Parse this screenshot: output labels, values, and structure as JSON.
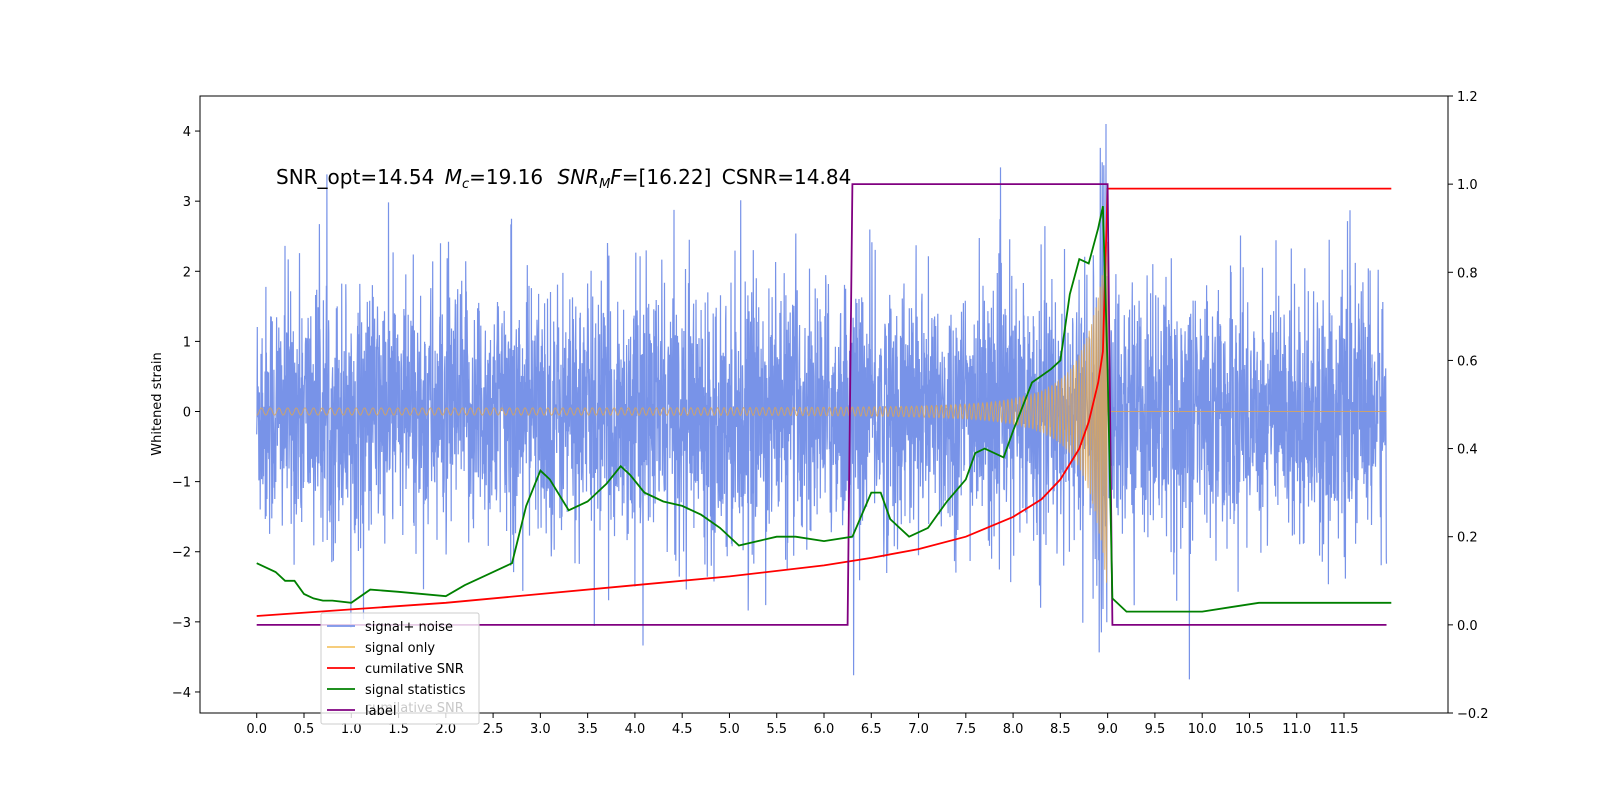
{
  "chart_data": {
    "type": "line",
    "title": "",
    "xlabel": "",
    "ylabel": "Whitened strain",
    "xlim": [
      -0.6,
      12.6
    ],
    "ylim": [
      -4.3,
      4.5
    ],
    "ylim_right": [
      -0.2,
      1.2
    ],
    "grid": false,
    "legend_position": "lower-left",
    "x_ticks": [
      "0.0",
      "0.5",
      "1.0",
      "1.5",
      "2.0",
      "2.5",
      "3.0",
      "3.5",
      "4.0",
      "4.5",
      "5.0",
      "5.5",
      "6.0",
      "6.5",
      "7.0",
      "7.5",
      "8.0",
      "8.5",
      "9.0",
      "9.5",
      "10.0",
      "10.5",
      "11.0",
      "11.5"
    ],
    "y_ticks_left": [
      "4",
      "3",
      "2",
      "1",
      "0",
      "−1",
      "−2",
      "−3",
      "−4"
    ],
    "y_ticks_right": [
      "1.2",
      "1.0",
      "0.8",
      "0.6",
      "0.4",
      "0.2",
      "0.0",
      "−0.2"
    ],
    "annotation": {
      "snr_opt": "SNR_opt=14.54",
      "mc_sym": "M",
      "mc_sub": "c",
      "mc_val": "=19.16",
      "snr_mf_sym": "SNR",
      "snr_mf_sub": "M",
      "snr_mf_f": "F",
      "snr_mf_val": "=[16.22]",
      "csnr": "CSNR=14.84"
    },
    "legend": [
      {
        "label": "signal+ noise",
        "color": "#7893e8"
      },
      {
        "label": "signal only",
        "color": "#f5c66a"
      },
      {
        "label": "cumilative SNR",
        "color": "#ff0000"
      },
      {
        "label": "signal statistics",
        "color": "#008000"
      },
      {
        "label": "label",
        "color": "#800080"
      }
    ],
    "legend_ghost_text": "cumilative SNR",
    "series": [
      {
        "name": "cumilative SNR",
        "axis": "right",
        "color": "#ff0000",
        "x": [
          0.0,
          1.0,
          2.0,
          3.0,
          4.0,
          5.0,
          6.0,
          6.5,
          7.0,
          7.5,
          8.0,
          8.3,
          8.5,
          8.7,
          8.8,
          8.9,
          8.95,
          9.0,
          12.0
        ],
        "y": [
          0.02,
          0.035,
          0.05,
          0.07,
          0.09,
          0.11,
          0.135,
          0.152,
          0.172,
          0.2,
          0.245,
          0.285,
          0.33,
          0.4,
          0.46,
          0.55,
          0.62,
          0.99,
          0.99
        ]
      },
      {
        "name": "label",
        "axis": "right",
        "color": "#800080",
        "x": [
          0.0,
          6.25,
          6.3,
          9.0,
          9.05,
          11.95
        ],
        "y": [
          0.0,
          0.0,
          1.0,
          1.0,
          0.0,
          0.0
        ]
      },
      {
        "name": "signal statistics",
        "axis": "right",
        "color": "#008000",
        "x": [
          0.0,
          0.2,
          0.3,
          0.4,
          0.5,
          0.6,
          0.7,
          0.8,
          1.0,
          1.2,
          1.5,
          2.0,
          2.2,
          2.4,
          2.7,
          2.85,
          3.0,
          3.1,
          3.3,
          3.5,
          3.7,
          3.85,
          3.95,
          4.1,
          4.3,
          4.5,
          4.7,
          4.9,
          5.1,
          5.3,
          5.5,
          5.7,
          6.0,
          6.3,
          6.5,
          6.6,
          6.7,
          6.9,
          7.1,
          7.3,
          7.5,
          7.6,
          7.7,
          7.9,
          8.0,
          8.2,
          8.4,
          8.5,
          8.6,
          8.7,
          8.8,
          8.9,
          8.95,
          9.0,
          9.05,
          9.2,
          9.5,
          10.0,
          10.3,
          10.6,
          11.0,
          11.5,
          12.0
        ],
        "y": [
          0.14,
          0.12,
          0.1,
          0.1,
          0.07,
          0.06,
          0.055,
          0.055,
          0.05,
          0.08,
          0.075,
          0.065,
          0.09,
          0.11,
          0.14,
          0.27,
          0.35,
          0.33,
          0.26,
          0.28,
          0.32,
          0.36,
          0.34,
          0.3,
          0.28,
          0.27,
          0.25,
          0.22,
          0.18,
          0.19,
          0.2,
          0.2,
          0.19,
          0.2,
          0.3,
          0.3,
          0.24,
          0.2,
          0.22,
          0.28,
          0.33,
          0.39,
          0.4,
          0.38,
          0.44,
          0.55,
          0.58,
          0.6,
          0.75,
          0.83,
          0.82,
          0.9,
          0.95,
          0.58,
          0.06,
          0.03,
          0.03,
          0.03,
          0.04,
          0.05,
          0.05,
          0.05,
          0.05
        ]
      }
    ]
  }
}
